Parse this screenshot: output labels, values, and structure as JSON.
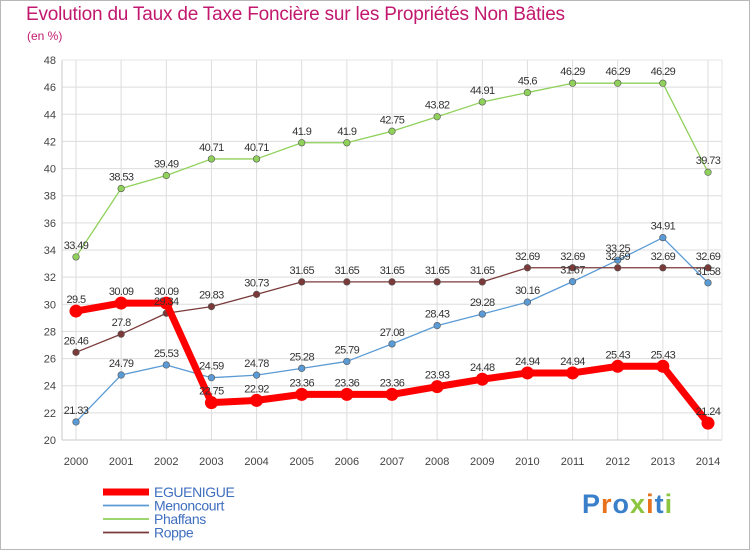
{
  "header": {
    "title": "Evolution du Taux de Taxe Foncière sur les Propriétés Non Bâties",
    "unit": "(en %)"
  },
  "logo": {
    "text": "Proxiti",
    "colors": [
      "#3a7fc9",
      "#e8731c",
      "#3a7fc9",
      "#8cc63f",
      "#e8731c",
      "#3a7fc9",
      "#8cc63f"
    ]
  },
  "chart_data": {
    "type": "line",
    "title": "Evolution du Taux de Taxe Foncière sur les Propriétés Non Bâties",
    "ylabel": "(en %)",
    "xlabel": "",
    "x": [
      "2000",
      "2001",
      "2002",
      "2003",
      "2004",
      "2005",
      "2006",
      "2007",
      "2008",
      "2009",
      "2010",
      "2011",
      "2012",
      "2013",
      "2014"
    ],
    "ylim": [
      20,
      48
    ],
    "yticks": [
      20,
      22,
      24,
      26,
      28,
      30,
      32,
      34,
      36,
      38,
      40,
      42,
      44,
      46,
      48
    ],
    "grid": true,
    "legend": "bottom-left",
    "series": [
      {
        "name": "EGUENIGUE",
        "color": "#ff0000",
        "values": [
          29.5,
          30.09,
          30.09,
          22.75,
          22.92,
          23.36,
          23.36,
          23.36,
          23.93,
          24.48,
          24.94,
          24.94,
          25.43,
          25.43,
          21.24
        ],
        "labels": [
          "29.5",
          "30.09",
          "30.09",
          "22.75",
          "22.92",
          "23.36",
          "23.36",
          "23.36",
          "23.93",
          "24.48",
          "24.94",
          "24.94",
          "25.43",
          "25.43",
          "21.24"
        ]
      },
      {
        "name": "Menoncourt",
        "color": "#5b9bd5",
        "values": [
          21.33,
          24.79,
          25.53,
          24.59,
          24.78,
          25.28,
          25.79,
          27.08,
          28.43,
          29.28,
          30.16,
          31.67,
          33.25,
          34.91,
          31.58
        ],
        "labels": [
          "21.33",
          "24.79",
          "25.53",
          "24.59",
          "24.78",
          "25.28",
          "25.79",
          "27.08",
          "28.43",
          "29.28",
          "30.16",
          "31.67",
          "33.25",
          "34.91",
          "31.58"
        ]
      },
      {
        "name": "Phaffans",
        "color": "#8fd15a",
        "values": [
          33.49,
          38.53,
          39.49,
          40.71,
          40.71,
          41.9,
          41.9,
          42.75,
          43.82,
          44.91,
          45.6,
          46.29,
          46.29,
          46.29,
          39.73
        ],
        "labels": [
          "33.49",
          "38.53",
          "39.49",
          "40.71",
          "40.71",
          "41.9",
          "41.9",
          "42.75",
          "43.82",
          "44.91",
          "45.6",
          "46.29",
          "46.29",
          "46.29",
          "39.73"
        ]
      },
      {
        "name": "Roppe",
        "color": "#7b3a3a",
        "values": [
          26.46,
          27.8,
          29.34,
          29.83,
          30.73,
          31.65,
          31.65,
          31.65,
          31.65,
          31.65,
          32.69,
          32.69,
          32.69,
          32.69,
          32.69
        ],
        "labels": [
          "26.46",
          "27.8",
          "29.34",
          "29.83",
          "30.73",
          "31.65",
          "31.65",
          "31.65",
          "31.65",
          "31.65",
          "32.69",
          "32.69",
          "32.69",
          "32.69",
          "32.69"
        ]
      }
    ]
  }
}
